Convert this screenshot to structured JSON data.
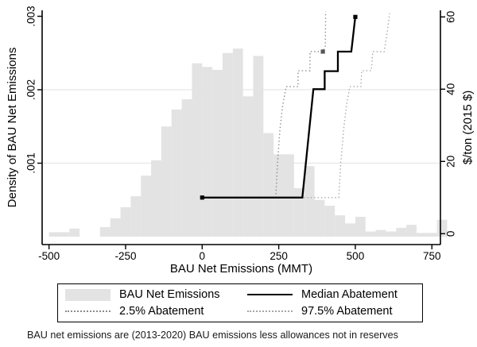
{
  "figure": {
    "footnote": "BAU net emissions are (2013-2020) BAU emissions less allowances not in reserves"
  },
  "chart_data": {
    "type": "histogram_with_step_lines",
    "title": "",
    "x_axis": {
      "label": "BAU Net Emissions (MMT)",
      "ticks": [
        -500,
        -250,
        0,
        250,
        500,
        750
      ],
      "range": [
        -525,
        780
      ]
    },
    "y_left_axis": {
      "label": "Density of BAU Net Emissions",
      "ticks": [
        0.001,
        0.002,
        0.003
      ],
      "tick_labels": [
        ".001",
        ".002",
        ".003"
      ],
      "range": [
        0,
        0.00306
      ],
      "grid_values": [
        0.001,
        0.002
      ]
    },
    "y_right_axis": {
      "label": "$/ton (2015 $)",
      "ticks": [
        0,
        20,
        40,
        60
      ],
      "tick_labels": [
        "0",
        "20",
        "40",
        "60"
      ],
      "range": [
        0,
        62
      ]
    },
    "histogram": {
      "name": "BAU Net Emissions",
      "units": "density per MMT",
      "bin_start": -500,
      "bin_width": 33.33,
      "densities_e3": [
        0.06,
        0.06,
        0.11,
        0,
        0,
        0.13,
        0.25,
        0.4,
        0.55,
        0.83,
        1.04,
        1.5,
        1.73,
        1.87,
        2.36,
        2.31,
        2.27,
        2.5,
        2.56,
        1.91,
        2.46,
        1.41,
        1.12,
        1.12,
        0.66,
        0.96,
        0.5,
        0.42,
        0.29,
        0.18,
        0.27,
        0.07,
        0.09,
        0.07,
        0.12,
        0.16,
        0.05,
        0.05,
        0.23
      ],
      "color": "#e3e3e3"
    },
    "series": [
      {
        "name": "Median Abatement",
        "style": "solid",
        "color": "#000000",
        "width": 2.3,
        "points": [
          [
            0,
            10
          ],
          [
            327,
            10
          ],
          [
            363,
            40
          ],
          [
            400,
            40
          ],
          [
            400,
            45
          ],
          [
            443,
            45
          ],
          [
            443,
            50.4
          ],
          [
            487,
            50.4
          ],
          [
            500,
            60
          ]
        ],
        "marker_points": [
          [
            0,
            10
          ],
          [
            500,
            60
          ]
        ]
      },
      {
        "name": "2.5% Abatement",
        "style": "dotted",
        "color": "#8a8a8a",
        "width": 1.4,
        "points": [
          [
            0,
            10
          ],
          [
            240,
            10
          ],
          [
            247,
            21
          ],
          [
            254,
            29
          ],
          [
            262,
            35
          ],
          [
            274,
            40.7
          ],
          [
            313,
            40.7
          ],
          [
            313,
            45.1
          ],
          [
            352,
            45.1
          ],
          [
            352,
            50.4
          ],
          [
            394,
            50.4
          ],
          [
            402,
            52
          ],
          [
            403,
            61.5
          ]
        ],
        "marker_points": [
          [
            394,
            50.4
          ]
        ]
      },
      {
        "name": "97.5% Abatement",
        "style": "dotted",
        "color": "#a6a6a6",
        "width": 1.4,
        "points": [
          [
            0,
            10
          ],
          [
            446,
            10
          ],
          [
            453,
            20
          ],
          [
            462,
            29
          ],
          [
            471,
            35.5
          ],
          [
            482,
            40.7
          ],
          [
            518,
            40.7
          ],
          [
            521,
            45.1
          ],
          [
            552,
            45.1
          ],
          [
            557,
            50.4
          ],
          [
            594,
            50.4
          ],
          [
            601,
            54
          ],
          [
            612,
            61
          ]
        ],
        "marker_points": []
      }
    ],
    "legend": {
      "position": "bottom",
      "items": [
        {
          "label": "BAU Net Emissions",
          "sample": "swatch",
          "color": "#e3e3e3"
        },
        {
          "label": "Median Abatement",
          "sample": "solid",
          "color": "#000000"
        },
        {
          "label": "2.5% Abatement",
          "sample": "dotted",
          "color": "#8a8a8a"
        },
        {
          "label": "97.5% Abatement",
          "sample": "dotted",
          "color": "#a6a6a6"
        }
      ]
    },
    "grid_color": "#dfeaee",
    "axis_color": "#000000"
  }
}
